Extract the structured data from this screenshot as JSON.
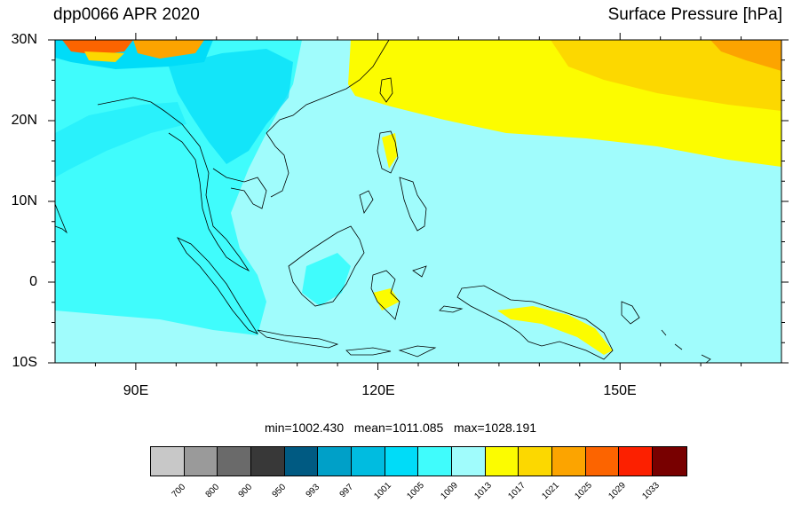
{
  "header": {
    "left_title": "dpp0066 APR 2020",
    "right_title": "Surface Pressure [hPa]"
  },
  "map": {
    "lat_labels": [
      "30N",
      "20N",
      "10N",
      "0",
      "10S"
    ],
    "lon_labels": [
      "90E",
      "120E",
      "150E"
    ],
    "lon_range": [
      80,
      170
    ],
    "lat_range": [
      -10,
      30
    ]
  },
  "stats_text": "min=1002.430   mean=1011.085   max=1028.191",
  "colorbar": {
    "labels": [
      "700",
      "800",
      "900",
      "950",
      "993",
      "997",
      "1001",
      "1005",
      "1009",
      "1013",
      "1017",
      "1021",
      "1025",
      "1029",
      "1033"
    ],
    "colors": [
      "#c8c8c8",
      "#9a9a9a",
      "#6a6a6a",
      "#383838",
      "#005a82",
      "#00a0c8",
      "#00bce0",
      "#00dcf8",
      "#40fcfc",
      "#a0fcfc",
      "#fcfc00",
      "#fcd800",
      "#fca400",
      "#fc6400",
      "#fc2000",
      "#780000"
    ]
  }
}
